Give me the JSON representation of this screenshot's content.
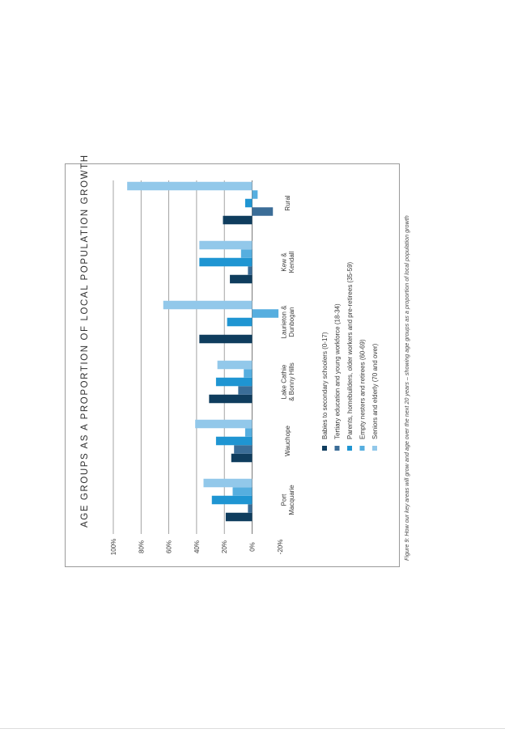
{
  "title": "AGE GROUPS AS A PROPORTION OF LOCAL POPULATION GROWTH",
  "caption": "Figure 9: How our key areas will grow and age over the next 20 years – showing age groups as a proportion of local population growth",
  "chart_data": {
    "type": "bar",
    "orientation": "rotated page, bars grow toward page top",
    "title": "AGE GROUPS AS A PROPORTION OF LOCAL POPULATION GROWTH",
    "categories": [
      [
        "Port",
        "Macquarie"
      ],
      [
        "Wauchope"
      ],
      [
        "Lake Cathie",
        "& Bonny Hills"
      ],
      [
        "Laurieton &",
        "Dunbogan"
      ],
      [
        "Kew &",
        "Kendall"
      ],
      [
        "Rural"
      ]
    ],
    "ylim": [
      -20,
      100
    ],
    "yticks": [
      "-20%",
      "0%",
      "20%",
      "40%",
      "60%",
      "80%",
      "100%"
    ],
    "ytick_values": [
      -20,
      0,
      20,
      40,
      60,
      80,
      100
    ],
    "grid": true,
    "legend_position": "below plot",
    "series": [
      {
        "name": "Babies to secondary schoolers (0-17)",
        "color": "#0f3d5e",
        "values": [
          19,
          15,
          31,
          38,
          16,
          21
        ]
      },
      {
        "name": "Tertiary education and young workforce (18-34)",
        "color": "#3b6d97",
        "values": [
          3,
          13,
          10,
          0,
          3,
          -15
        ]
      },
      {
        "name": "Parents, homebuilders, older workers and pre-retirees (35-59)",
        "color": "#1f95d2",
        "values": [
          29,
          26,
          26,
          18,
          38,
          5
        ]
      },
      {
        "name": "Empty nesters and retirees (60-69)",
        "color": "#56aedf",
        "values": [
          14,
          5,
          6,
          -19,
          8,
          -4
        ]
      },
      {
        "name": "Seniors and elderly (70 and over)",
        "color": "#92c8ea",
        "values": [
          35,
          41,
          25,
          64,
          38,
          90
        ]
      }
    ]
  }
}
